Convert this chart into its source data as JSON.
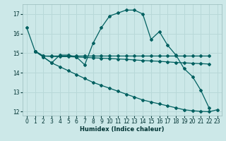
{
  "xlabel": "Humidex (Indice chaleur)",
  "bg_color": "#cce8e8",
  "grid_color": "#b8d8d8",
  "line_color": "#006060",
  "ylim": [
    11.8,
    17.5
  ],
  "xlim": [
    -0.5,
    23.5
  ],
  "yticks": [
    12,
    13,
    14,
    15,
    16,
    17
  ],
  "xticks": [
    0,
    1,
    2,
    3,
    4,
    5,
    6,
    7,
    8,
    9,
    10,
    11,
    12,
    13,
    14,
    15,
    16,
    17,
    18,
    19,
    20,
    21,
    22,
    23
  ],
  "series1_x": [
    0,
    1,
    2,
    3,
    4,
    5,
    6,
    7,
    8,
    9,
    10,
    11,
    12,
    13,
    14,
    15,
    16,
    17,
    18,
    19,
    20,
    21,
    22
  ],
  "series1_y": [
    16.3,
    15.1,
    14.8,
    14.5,
    14.9,
    14.9,
    14.8,
    14.4,
    15.5,
    16.3,
    16.9,
    17.05,
    17.2,
    17.2,
    17.0,
    15.7,
    16.1,
    15.4,
    14.9,
    14.2,
    13.8,
    13.1,
    12.2
  ],
  "series2_x": [
    1,
    2,
    3,
    4,
    5,
    6,
    7,
    8,
    9,
    10,
    11,
    12,
    13,
    14,
    15,
    16,
    17,
    18,
    19,
    20,
    21,
    22
  ],
  "series2_y": [
    15.1,
    14.85,
    14.85,
    14.85,
    14.85,
    14.85,
    14.85,
    14.85,
    14.85,
    14.85,
    14.85,
    14.85,
    14.85,
    14.85,
    14.85,
    14.85,
    14.85,
    14.85,
    14.85,
    14.85,
    14.85,
    14.85
  ],
  "series3_x": [
    1,
    2,
    3,
    4,
    5,
    6,
    7,
    8,
    9,
    10,
    11,
    12,
    13,
    14,
    15,
    16,
    17,
    18,
    19,
    20,
    21,
    22
  ],
  "series3_y": [
    15.1,
    14.85,
    14.83,
    14.82,
    14.82,
    14.8,
    14.78,
    14.76,
    14.74,
    14.72,
    14.7,
    14.68,
    14.65,
    14.62,
    14.6,
    14.58,
    14.55,
    14.52,
    14.5,
    14.48,
    14.46,
    14.44
  ],
  "series4_x": [
    1,
    2,
    3,
    4,
    5,
    6,
    7,
    8,
    9,
    10,
    11,
    12,
    13,
    14,
    15,
    16,
    17,
    18,
    19,
    20,
    21,
    22,
    23
  ],
  "series4_y": [
    15.1,
    14.8,
    14.5,
    14.3,
    14.1,
    13.9,
    13.7,
    13.5,
    13.35,
    13.2,
    13.05,
    12.9,
    12.75,
    12.6,
    12.5,
    12.4,
    12.3,
    12.2,
    12.1,
    12.05,
    12.02,
    12.0,
    12.1
  ]
}
